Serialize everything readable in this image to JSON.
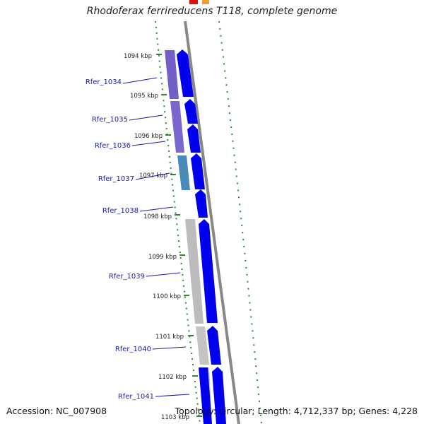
{
  "title": "Rhodoferax ferrireducens T118, complete genome",
  "kbp_labels": [
    "1094 kbp",
    "1095 kbp",
    "1096 kbp",
    "1097 kbp",
    "1098 kbp",
    "1099 kbp",
    "1100 kbp",
    "1101 kbp",
    "1102 kbp",
    "1103 kbp"
  ],
  "genes": [
    "Rfer_1034",
    "Rfer_1035",
    "Rfer_1036",
    "Rfer_1037",
    "Rfer_1038",
    "Rfer_1039",
    "Rfer_1040",
    "Rfer_1041"
  ],
  "footer": {
    "accession": "Accession: NC_007908",
    "stats": "Topology: circular; Length: 4,712,337 bp; Genes: 4,228"
  },
  "colors": {
    "cds": "#0000ee",
    "backbone": "#888888",
    "dotted_ring": "#2a8a2a",
    "gene_label": "#1a1aa8",
    "purple_block": "#7060c8",
    "teal_block": "#4a8ab8",
    "gray_block": "#bcbcbc"
  }
}
